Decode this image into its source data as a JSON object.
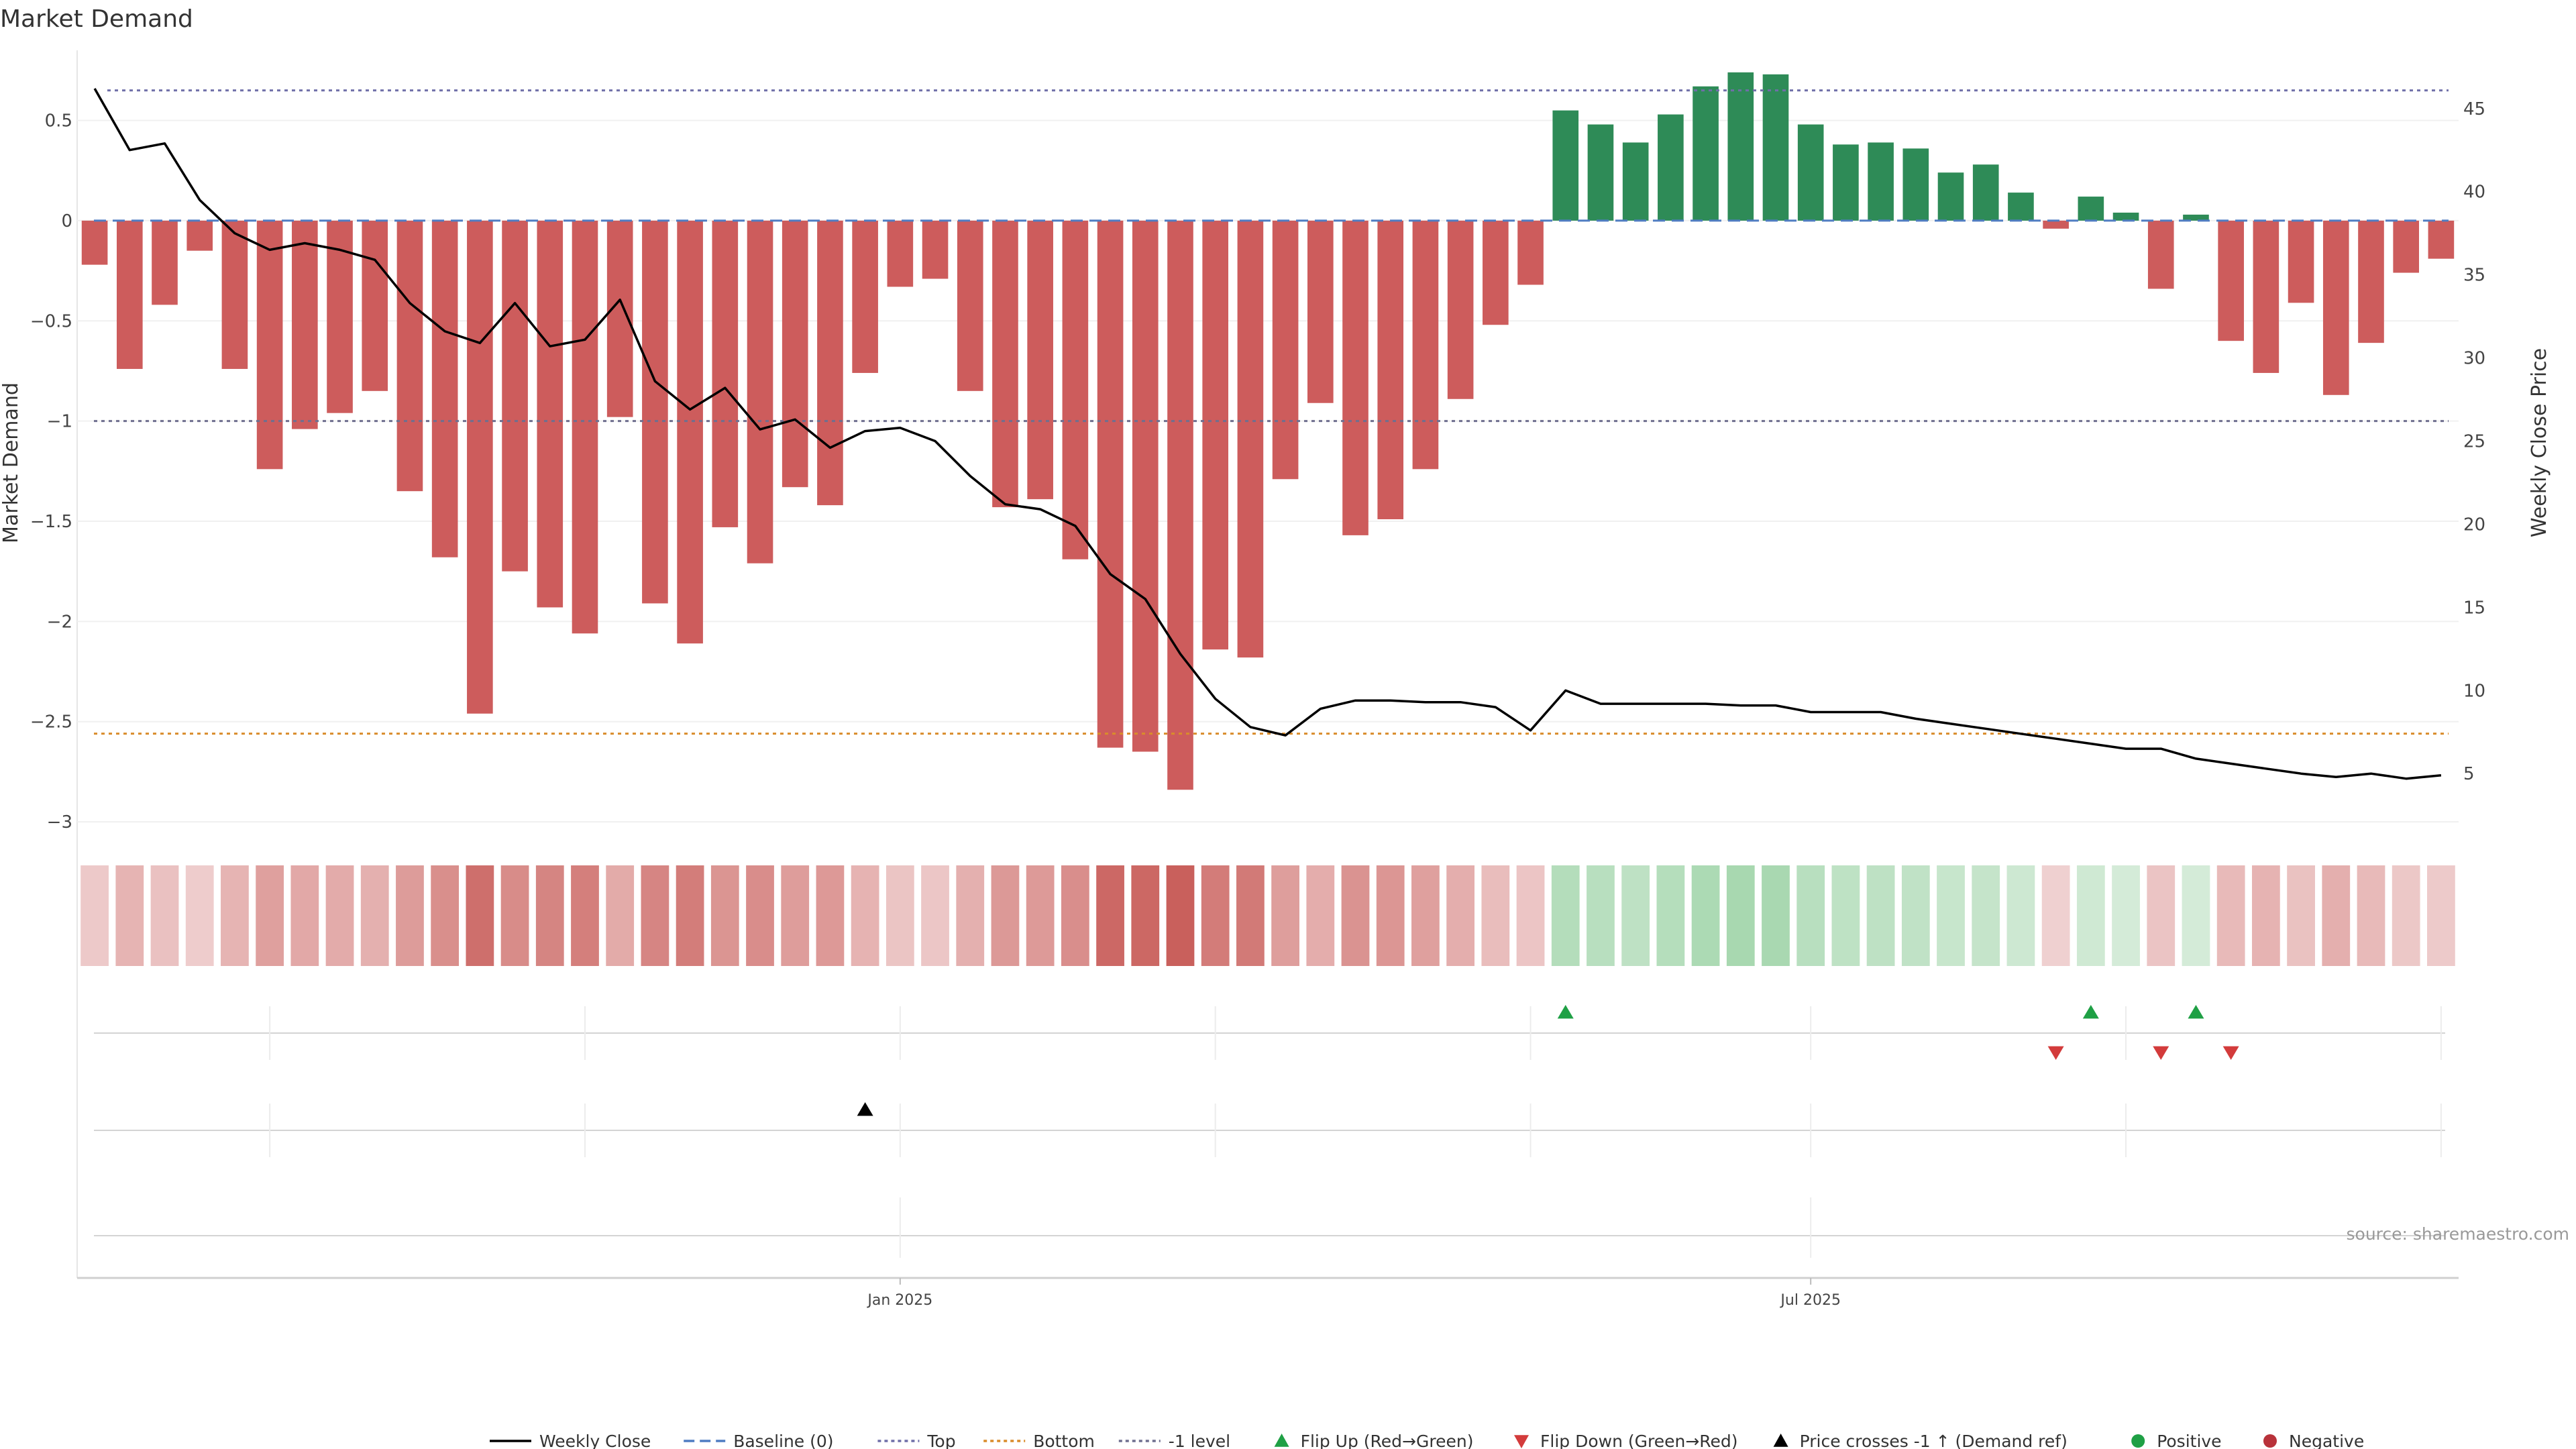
{
  "title": "Market Demand",
  "source": "source: sharemaestro.com",
  "colors": {
    "positive": "#2e8b57",
    "negative": "#cd5c5c",
    "price_line": "#000000",
    "baseline": "#4f7cc2",
    "top": "#6f6fa8",
    "bottom": "#d98c2b",
    "minus1": "#6f6f8f",
    "flip_up": "#1fa045",
    "flip_down": "#d33b3b",
    "cross": "#000000"
  },
  "chart_data": {
    "type": "bar",
    "title": "Market Demand",
    "ylabel": "Market Demand",
    "y2label": "Weekly Close Price",
    "ylim": [
      -3.05,
      0.85
    ],
    "y2lim": [
      1.5,
      48.5
    ],
    "yticks": [
      0.5,
      0,
      -0.5,
      -1,
      -1.5,
      -2,
      -2.5,
      -3
    ],
    "ytick_labels": [
      "0.5",
      "0",
      "−0.5",
      "−1",
      "−1.5",
      "−2",
      "−2.5",
      "−3"
    ],
    "y2ticks": [
      45,
      40,
      35,
      30,
      25,
      20,
      15,
      10,
      5
    ],
    "y2tick_labels": [
      "45",
      "40",
      "35",
      "30",
      "25",
      "20",
      "15",
      "10",
      "5"
    ],
    "xtick_labels": [
      {
        "label": "Jan 2025",
        "week": 23.5
      },
      {
        "label": "Jul 2025",
        "week": 49.5
      }
    ],
    "vgrid_weeks": [
      5.5,
      14.5,
      23.5,
      32.5,
      41.5,
      49.5,
      58.5,
      67.5
    ],
    "reference_lines": {
      "top": 0.65,
      "baseline": 0,
      "minus1": -1,
      "bottom": -2.56
    },
    "demand": [
      -0.22,
      -0.74,
      -0.42,
      -0.15,
      -0.74,
      -1.24,
      -1.04,
      -0.96,
      -0.85,
      -1.35,
      -1.68,
      -2.46,
      -1.75,
      -1.93,
      -2.06,
      -0.98,
      -1.91,
      -2.11,
      -1.53,
      -1.71,
      -1.33,
      -1.42,
      -0.76,
      -0.33,
      -0.29,
      -0.85,
      -1.43,
      -1.39,
      -1.69,
      -2.63,
      -2.65,
      -2.84,
      -2.14,
      -2.18,
      -1.29,
      -0.91,
      -1.57,
      -1.49,
      -1.24,
      -0.89,
      -0.52,
      -0.32,
      0.55,
      0.48,
      0.39,
      0.53,
      0.67,
      0.74,
      0.73,
      0.48,
      0.38,
      0.39,
      0.36,
      0.24,
      0.28,
      0.14,
      -0.04,
      0.12,
      0.04,
      -0.34,
      0.03,
      -0.6,
      -0.76,
      -0.41,
      -0.87,
      -0.61,
      -0.26,
      -0.19
    ],
    "close": [
      46.2,
      42.5,
      42.9,
      39.5,
      37.5,
      36.5,
      36.9,
      36.5,
      35.9,
      33.3,
      31.6,
      30.9,
      33.3,
      30.7,
      31.1,
      33.5,
      28.6,
      26.9,
      28.2,
      25.7,
      26.3,
      24.6,
      25.6,
      25.8,
      25.0,
      22.9,
      21.2,
      20.9,
      19.9,
      17.0,
      15.5,
      12.2,
      9.5,
      7.8,
      7.3,
      8.9,
      9.4,
      9.4,
      9.3,
      9.3,
      9.0,
      7.6,
      10.0,
      9.2,
      9.2,
      9.2,
      9.2,
      9.1,
      9.1,
      8.7,
      8.7,
      8.7,
      8.3,
      8.0,
      7.7,
      7.4,
      7.1,
      6.8,
      6.5,
      6.5,
      5.9,
      5.6,
      5.3,
      5.0,
      4.8,
      5.0,
      4.7,
      4.9
    ],
    "flip_up_weeks": [
      42,
      57,
      60
    ],
    "flip_down_weeks": [
      56,
      59,
      61
    ],
    "price_cross_weeks": [
      22
    ]
  },
  "axis_labels": {
    "left": "Market Demand",
    "right": "Weekly Close Price"
  },
  "legend": [
    {
      "key": "weekly-close",
      "label": "Weekly Close",
      "symbol": "line-solid",
      "color": "#000000"
    },
    {
      "key": "baseline",
      "label": "Baseline (0)",
      "symbol": "line-dashed",
      "color": "#4f7cc2"
    },
    {
      "key": "top",
      "label": "Top",
      "symbol": "line-dotted",
      "color": "#6f6fa8"
    },
    {
      "key": "bottom",
      "label": "Bottom",
      "symbol": "line-dotted",
      "color": "#d98c2b"
    },
    {
      "key": "minus1",
      "label": "-1 level",
      "symbol": "line-dotted",
      "color": "#6f6f8f"
    },
    {
      "key": "flip-up",
      "label": "Flip Up (Red→Green)",
      "symbol": "triangle-up",
      "color": "#1fa045"
    },
    {
      "key": "flip-down",
      "label": "Flip Down (Green→Red)",
      "symbol": "triangle-down",
      "color": "#d33b3b"
    },
    {
      "key": "price-cross",
      "label": "Price crosses -1 ↑ (Demand ref)",
      "symbol": "triangle-up",
      "color": "#000000"
    },
    {
      "key": "positive",
      "label": "Positive",
      "symbol": "dot",
      "color": "#1fa045"
    },
    {
      "key": "negative",
      "label": "Negative",
      "symbol": "dot",
      "color": "#b8323a"
    }
  ]
}
